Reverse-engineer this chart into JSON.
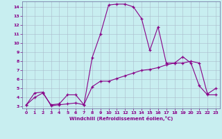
{
  "xlabel": "Windchill (Refroidissement éolien,°C)",
  "background_color": "#c8eef0",
  "line_color": "#880088",
  "spine_color": "#666699",
  "xlim": [
    -0.5,
    23.5
  ],
  "ylim": [
    2.8,
    14.6
  ],
  "xticks": [
    0,
    1,
    2,
    3,
    4,
    5,
    6,
    7,
    8,
    9,
    10,
    11,
    12,
    13,
    14,
    15,
    16,
    17,
    18,
    19,
    20,
    21,
    22,
    23
  ],
  "yticks": [
    3,
    4,
    5,
    6,
    7,
    8,
    9,
    10,
    11,
    12,
    13,
    14
  ],
  "series1_x": [
    0,
    1,
    2,
    3,
    4,
    5,
    6,
    7,
    8,
    9,
    10,
    11,
    12,
    13,
    14,
    15,
    16,
    17,
    18,
    19,
    20,
    21,
    22,
    23
  ],
  "series1_y": [
    3.2,
    4.5,
    4.6,
    3.1,
    3.2,
    3.3,
    3.4,
    3.2,
    8.4,
    11.0,
    14.2,
    14.3,
    14.3,
    14.0,
    12.7,
    9.2,
    11.8,
    7.8,
    7.8,
    8.5,
    7.8,
    5.3,
    4.3,
    4.3
  ],
  "series2_x": [
    0,
    1,
    2,
    3,
    4,
    5,
    6,
    7,
    8,
    9,
    10,
    11,
    12,
    13,
    14,
    15,
    16,
    17,
    18,
    19,
    20,
    21,
    22,
    23
  ],
  "series2_y": [
    3.2,
    4.0,
    4.5,
    3.2,
    3.3,
    4.3,
    4.3,
    3.2,
    5.2,
    5.8,
    5.8,
    6.1,
    6.4,
    6.7,
    7.0,
    7.1,
    7.3,
    7.6,
    7.8,
    7.8,
    8.0,
    7.8,
    4.4,
    5.0
  ]
}
